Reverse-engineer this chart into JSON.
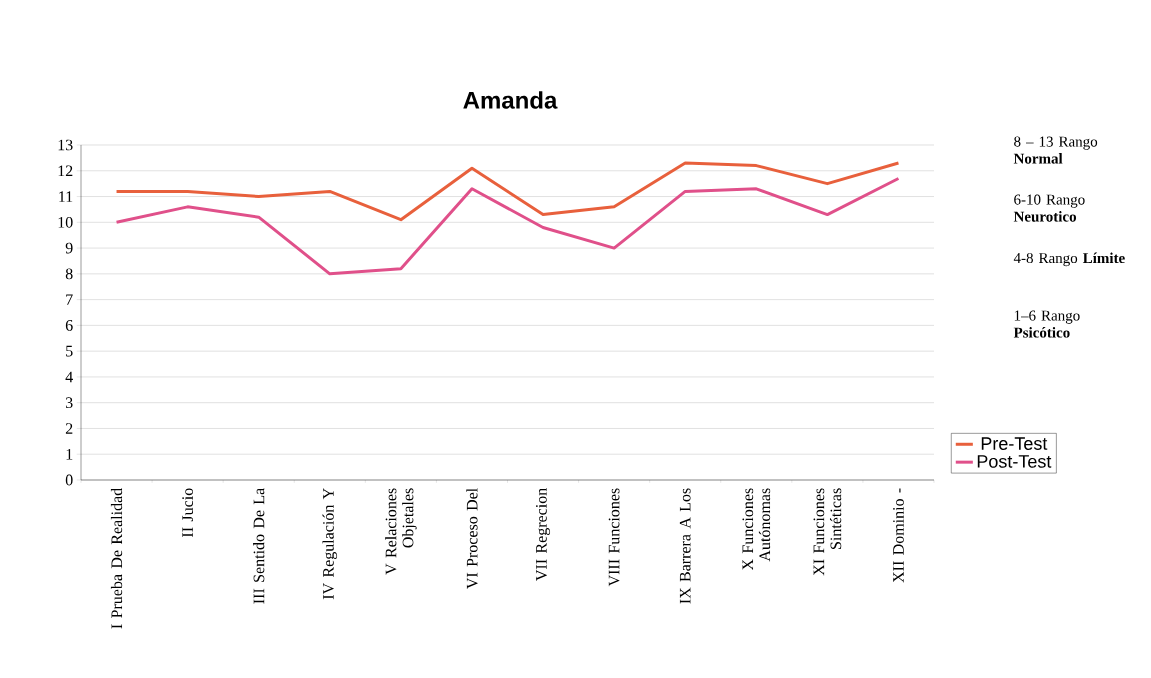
{
  "chart_data": {
    "type": "line",
    "title": "Amanda",
    "categories": [
      "I Prueba De Realidad",
      "II Jucio",
      "III Sentido De La",
      "IV Regulación Y",
      "V Relaciones Objetales",
      "VI Proceso Del",
      "VII Regrecion",
      "VIII Funciones",
      "IX Barrera A Los",
      "X Funciones Autónomas",
      "XI Funciones Sintéticas",
      "XII Dominio -"
    ],
    "series": [
      {
        "name": "Pre-Test",
        "color": "#e8603c",
        "values": [
          11.2,
          11.2,
          11.0,
          11.2,
          10.1,
          12.1,
          10.3,
          10.6,
          12.3,
          12.2,
          11.5,
          12.3
        ]
      },
      {
        "name": "Post-Test",
        "color": "#e0508a",
        "values": [
          10.0,
          10.6,
          10.2,
          8.0,
          8.2,
          11.3,
          9.8,
          9.0,
          11.2,
          11.3,
          10.3,
          11.7
        ]
      }
    ],
    "ylim": [
      0,
      13
    ],
    "yticks": [
      0,
      1,
      2,
      3,
      4,
      5,
      6,
      7,
      8,
      9,
      10,
      11,
      12,
      13
    ],
    "grid": "y",
    "legend": "right",
    "marker": "none",
    "line_style": "solid",
    "annotations": [
      "8 – 13 Rango **Normal**",
      "6-10 Rango **Neurotico**",
      "4-8 Rango **Límite**",
      "1–6 Rango **Psicótico**"
    ]
  }
}
